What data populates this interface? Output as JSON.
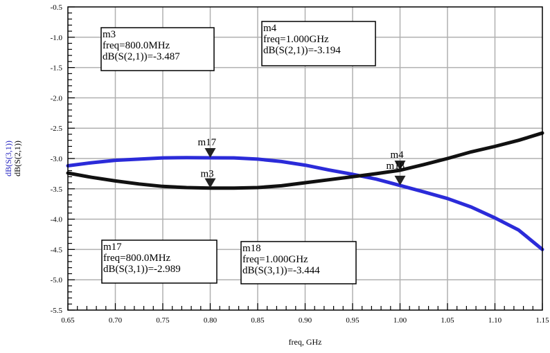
{
  "chart_data": {
    "type": "line",
    "xlabel": "freq, GHz",
    "ylabels": [
      {
        "text": "dB(S(3,1))",
        "color": "#1f1fbf"
      },
      {
        "text": "dB(S(2,1))",
        "color": "#000000"
      }
    ],
    "xlim": [
      0.65,
      1.15
    ],
    "ylim": [
      -5.5,
      -0.5
    ],
    "xticks": [
      "0.65",
      "0.70",
      "0.75",
      "0.80",
      "0.85",
      "0.90",
      "0.95",
      "1.00",
      "1.05",
      "1.10",
      "1.15"
    ],
    "yticks": [
      "-0.5",
      "-1.0",
      "-1.5",
      "-2.0",
      "-2.5",
      "-3.0",
      "-3.5",
      "-4.0",
      "-4.5",
      "-5.0",
      "-5.5"
    ],
    "grid": true,
    "series": [
      {
        "name": "dB(S(3,1))",
        "color": "#2b2bd9",
        "x": [
          0.65,
          0.675,
          0.7,
          0.725,
          0.75,
          0.775,
          0.8,
          0.825,
          0.85,
          0.875,
          0.9,
          0.925,
          0.95,
          0.975,
          1.0,
          1.025,
          1.05,
          1.075,
          1.1,
          1.125,
          1.15
        ],
        "y": [
          -3.12,
          -3.07,
          -3.03,
          -3.01,
          -2.99,
          -2.985,
          -2.989,
          -2.99,
          -3.01,
          -3.05,
          -3.11,
          -3.19,
          -3.26,
          -3.34,
          -3.444,
          -3.55,
          -3.66,
          -3.8,
          -3.98,
          -4.18,
          -4.5
        ]
      },
      {
        "name": "dB(S(2,1))",
        "color": "#111111",
        "x": [
          0.65,
          0.675,
          0.7,
          0.725,
          0.75,
          0.775,
          0.8,
          0.825,
          0.85,
          0.875,
          0.9,
          0.925,
          0.95,
          0.975,
          1.0,
          1.025,
          1.05,
          1.075,
          1.1,
          1.125,
          1.15
        ],
        "y": [
          -3.24,
          -3.31,
          -3.37,
          -3.42,
          -3.46,
          -3.48,
          -3.487,
          -3.487,
          -3.48,
          -3.45,
          -3.4,
          -3.35,
          -3.3,
          -3.25,
          -3.194,
          -3.1,
          -3.0,
          -2.89,
          -2.8,
          -2.7,
          -2.58
        ]
      }
    ],
    "markers": [
      {
        "name": "m17",
        "x": 0.8,
        "y": -2.989,
        "series": "dB(S(3,1))"
      },
      {
        "name": "m3",
        "x": 0.8,
        "y": -3.487,
        "series": "dB(S(2,1))"
      },
      {
        "name": "m4",
        "x": 1.0,
        "y": -3.194,
        "series": "dB(S(2,1))"
      },
      {
        "name": "m18",
        "x": 1.0,
        "y": -3.444,
        "series": "dB(S(3,1))"
      }
    ],
    "annotations": [
      {
        "id": "m3",
        "lines": [
          "m3",
          "freq=800.0MHz",
          "dB(S(2,1))=-3.487"
        ]
      },
      {
        "id": "m4",
        "lines": [
          "m4",
          "freq=1.000GHz",
          "dB(S(2,1))=-3.194"
        ]
      },
      {
        "id": "m17",
        "lines": [
          "m17",
          "freq=800.0MHz",
          "dB(S(3,1))=-2.989"
        ]
      },
      {
        "id": "m18",
        "lines": [
          "m18",
          "freq=1.000GHz",
          "dB(S(3,1))=-3.444"
        ]
      }
    ]
  }
}
